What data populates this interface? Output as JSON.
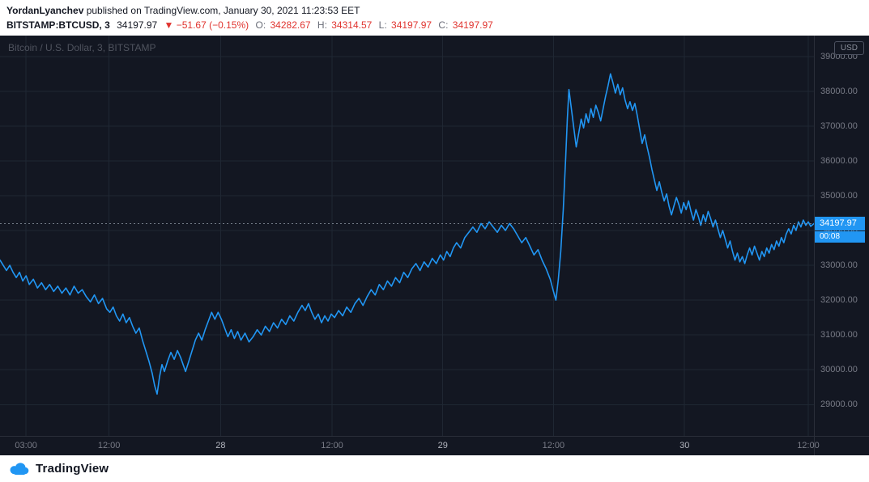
{
  "header": {
    "byline_author": "YordanLyanchev",
    "byline_rest": " published on TradingView.com, January 30, 2021 11:23:53 EET",
    "symbol": "BITSTAMP:BTCUSD, 3",
    "last_price": "34197.97",
    "change": "▼ −51.67 (−0.15%)",
    "ohlc": [
      {
        "label": "O:",
        "value": "34282.67"
      },
      {
        "label": "H:",
        "value": "34314.57"
      },
      {
        "label": "L:",
        "value": "34197.97"
      },
      {
        "label": "C:",
        "value": "34197.97"
      }
    ]
  },
  "footer": {
    "brand": "TradingView"
  },
  "colors": {
    "accent_blue": "#2196f3",
    "down_red": "#e0342f",
    "chart_bg": "#131722",
    "grid": "#1f2733",
    "axis_text": "#787b86"
  },
  "chart_data": {
    "type": "line",
    "title": "Bitcoin / U.S. Dollar, 3, BITSTAMP",
    "symbol": "BITSTAMP:BTCUSD",
    "interval": "3",
    "exchange": "BITSTAMP",
    "currency_tag": "USD",
    "last_price": 34197.97,
    "last_price_label": "34197.97",
    "countdown": "00:08",
    "ylim": [
      28100,
      39600
    ],
    "grid": true,
    "y_ticks": [
      {
        "value": 39000,
        "label": "39000.00"
      },
      {
        "value": 38000,
        "label": "38000.00"
      },
      {
        "value": 37000,
        "label": "37000.00"
      },
      {
        "value": 36000,
        "label": "36000.00"
      },
      {
        "value": 35000,
        "label": "35000.00"
      },
      {
        "value": 34000,
        "label": "34000.00"
      },
      {
        "value": 33000,
        "label": "33000.00"
      },
      {
        "value": 32000,
        "label": "32000.00"
      },
      {
        "value": 31000,
        "label": "31000.00"
      },
      {
        "value": 30000,
        "label": "30000.00"
      },
      {
        "value": 29000,
        "label": "29000.00"
      }
    ],
    "x_ticks": [
      {
        "f": 0.032,
        "label": "03:00",
        "major": false
      },
      {
        "f": 0.134,
        "label": "12:00",
        "major": false
      },
      {
        "f": 0.271,
        "label": "28",
        "major": true
      },
      {
        "f": 0.408,
        "label": "12:00",
        "major": false
      },
      {
        "f": 0.544,
        "label": "29",
        "major": true
      },
      {
        "f": 0.68,
        "label": "12:00",
        "major": false
      },
      {
        "f": 0.841,
        "label": "30",
        "major": true
      },
      {
        "f": 0.993,
        "label": "12:00",
        "major": false
      }
    ],
    "series": [
      {
        "name": "BTCUSD",
        "color": "#2196f3",
        "points": [
          [
            0.0,
            33150
          ],
          [
            0.004,
            33000
          ],
          [
            0.008,
            32850
          ],
          [
            0.012,
            33000
          ],
          [
            0.016,
            32800
          ],
          [
            0.02,
            32650
          ],
          [
            0.024,
            32800
          ],
          [
            0.028,
            32550
          ],
          [
            0.032,
            32700
          ],
          [
            0.036,
            32450
          ],
          [
            0.041,
            32600
          ],
          [
            0.046,
            32350
          ],
          [
            0.051,
            32500
          ],
          [
            0.056,
            32300
          ],
          [
            0.061,
            32450
          ],
          [
            0.066,
            32250
          ],
          [
            0.071,
            32400
          ],
          [
            0.076,
            32200
          ],
          [
            0.081,
            32350
          ],
          [
            0.086,
            32150
          ],
          [
            0.091,
            32400
          ],
          [
            0.096,
            32200
          ],
          [
            0.101,
            32300
          ],
          [
            0.106,
            32100
          ],
          [
            0.111,
            31950
          ],
          [
            0.116,
            32150
          ],
          [
            0.121,
            31900
          ],
          [
            0.126,
            32050
          ],
          [
            0.131,
            31750
          ],
          [
            0.135,
            31650
          ],
          [
            0.139,
            31800
          ],
          [
            0.143,
            31550
          ],
          [
            0.147,
            31400
          ],
          [
            0.151,
            31600
          ],
          [
            0.155,
            31350
          ],
          [
            0.159,
            31500
          ],
          [
            0.163,
            31250
          ],
          [
            0.167,
            31050
          ],
          [
            0.171,
            31200
          ],
          [
            0.175,
            30850
          ],
          [
            0.179,
            30550
          ],
          [
            0.183,
            30250
          ],
          [
            0.187,
            29900
          ],
          [
            0.19,
            29550
          ],
          [
            0.193,
            29300
          ],
          [
            0.196,
            29800
          ],
          [
            0.199,
            30150
          ],
          [
            0.202,
            29950
          ],
          [
            0.206,
            30250
          ],
          [
            0.21,
            30500
          ],
          [
            0.214,
            30300
          ],
          [
            0.218,
            30550
          ],
          [
            0.222,
            30350
          ],
          [
            0.225,
            30150
          ],
          [
            0.228,
            29950
          ],
          [
            0.232,
            30250
          ],
          [
            0.236,
            30550
          ],
          [
            0.24,
            30850
          ],
          [
            0.244,
            31050
          ],
          [
            0.248,
            30850
          ],
          [
            0.252,
            31150
          ],
          [
            0.256,
            31400
          ],
          [
            0.26,
            31650
          ],
          [
            0.264,
            31450
          ],
          [
            0.268,
            31650
          ],
          [
            0.272,
            31450
          ],
          [
            0.276,
            31200
          ],
          [
            0.28,
            30950
          ],
          [
            0.284,
            31150
          ],
          [
            0.288,
            30900
          ],
          [
            0.292,
            31100
          ],
          [
            0.296,
            30850
          ],
          [
            0.301,
            31050
          ],
          [
            0.306,
            30800
          ],
          [
            0.311,
            30950
          ],
          [
            0.316,
            31150
          ],
          [
            0.321,
            31000
          ],
          [
            0.326,
            31250
          ],
          [
            0.331,
            31100
          ],
          [
            0.336,
            31350
          ],
          [
            0.341,
            31200
          ],
          [
            0.346,
            31450
          ],
          [
            0.351,
            31300
          ],
          [
            0.356,
            31550
          ],
          [
            0.361,
            31400
          ],
          [
            0.366,
            31650
          ],
          [
            0.371,
            31850
          ],
          [
            0.375,
            31700
          ],
          [
            0.379,
            31900
          ],
          [
            0.383,
            31650
          ],
          [
            0.387,
            31450
          ],
          [
            0.391,
            31600
          ],
          [
            0.395,
            31350
          ],
          [
            0.399,
            31550
          ],
          [
            0.403,
            31400
          ],
          [
            0.407,
            31600
          ],
          [
            0.411,
            31500
          ],
          [
            0.416,
            31700
          ],
          [
            0.421,
            31550
          ],
          [
            0.426,
            31800
          ],
          [
            0.431,
            31650
          ],
          [
            0.436,
            31900
          ],
          [
            0.441,
            32050
          ],
          [
            0.446,
            31850
          ],
          [
            0.451,
            32100
          ],
          [
            0.456,
            32300
          ],
          [
            0.461,
            32150
          ],
          [
            0.466,
            32450
          ],
          [
            0.471,
            32300
          ],
          [
            0.476,
            32550
          ],
          [
            0.481,
            32400
          ],
          [
            0.486,
            32650
          ],
          [
            0.491,
            32500
          ],
          [
            0.496,
            32800
          ],
          [
            0.501,
            32650
          ],
          [
            0.506,
            32900
          ],
          [
            0.511,
            33050
          ],
          [
            0.516,
            32850
          ],
          [
            0.521,
            33100
          ],
          [
            0.526,
            32950
          ],
          [
            0.531,
            33200
          ],
          [
            0.536,
            33050
          ],
          [
            0.541,
            33300
          ],
          [
            0.545,
            33150
          ],
          [
            0.549,
            33400
          ],
          [
            0.553,
            33250
          ],
          [
            0.557,
            33500
          ],
          [
            0.561,
            33650
          ],
          [
            0.566,
            33500
          ],
          [
            0.571,
            33800
          ],
          [
            0.576,
            33950
          ],
          [
            0.581,
            34100
          ],
          [
            0.586,
            33950
          ],
          [
            0.591,
            34200
          ],
          [
            0.596,
            34050
          ],
          [
            0.601,
            34250
          ],
          [
            0.606,
            34100
          ],
          [
            0.611,
            33950
          ],
          [
            0.616,
            34150
          ],
          [
            0.621,
            34000
          ],
          [
            0.626,
            34200
          ],
          [
            0.631,
            34050
          ],
          [
            0.636,
            33850
          ],
          [
            0.641,
            33650
          ],
          [
            0.646,
            33800
          ],
          [
            0.651,
            33550
          ],
          [
            0.656,
            33300
          ],
          [
            0.661,
            33450
          ],
          [
            0.666,
            33150
          ],
          [
            0.671,
            32900
          ],
          [
            0.676,
            32600
          ],
          [
            0.68,
            32250
          ],
          [
            0.683,
            32000
          ],
          [
            0.686,
            32600
          ],
          [
            0.689,
            33400
          ],
          [
            0.692,
            34600
          ],
          [
            0.695,
            36100
          ],
          [
            0.697,
            37200
          ],
          [
            0.699,
            38050
          ],
          [
            0.702,
            37500
          ],
          [
            0.705,
            36950
          ],
          [
            0.708,
            36400
          ],
          [
            0.711,
            36800
          ],
          [
            0.714,
            37200
          ],
          [
            0.717,
            36950
          ],
          [
            0.72,
            37350
          ],
          [
            0.723,
            37100
          ],
          [
            0.726,
            37500
          ],
          [
            0.729,
            37250
          ],
          [
            0.732,
            37600
          ],
          [
            0.735,
            37400
          ],
          [
            0.738,
            37150
          ],
          [
            0.741,
            37500
          ],
          [
            0.744,
            37850
          ],
          [
            0.747,
            38150
          ],
          [
            0.75,
            38500
          ],
          [
            0.753,
            38250
          ],
          [
            0.756,
            37950
          ],
          [
            0.759,
            38200
          ],
          [
            0.762,
            37900
          ],
          [
            0.765,
            38100
          ],
          [
            0.768,
            37750
          ],
          [
            0.771,
            37500
          ],
          [
            0.774,
            37700
          ],
          [
            0.777,
            37450
          ],
          [
            0.78,
            37650
          ],
          [
            0.783,
            37300
          ],
          [
            0.786,
            36900
          ],
          [
            0.789,
            36500
          ],
          [
            0.792,
            36750
          ],
          [
            0.795,
            36400
          ],
          [
            0.798,
            36100
          ],
          [
            0.801,
            35750
          ],
          [
            0.804,
            35450
          ],
          [
            0.807,
            35150
          ],
          [
            0.81,
            35400
          ],
          [
            0.813,
            35100
          ],
          [
            0.816,
            34850
          ],
          [
            0.819,
            35050
          ],
          [
            0.822,
            34700
          ],
          [
            0.825,
            34450
          ],
          [
            0.828,
            34700
          ],
          [
            0.831,
            34950
          ],
          [
            0.834,
            34750
          ],
          [
            0.837,
            34500
          ],
          [
            0.84,
            34800
          ],
          [
            0.843,
            34600
          ],
          [
            0.846,
            34850
          ],
          [
            0.849,
            34550
          ],
          [
            0.852,
            34300
          ],
          [
            0.855,
            34600
          ],
          [
            0.858,
            34400
          ],
          [
            0.861,
            34150
          ],
          [
            0.864,
            34450
          ],
          [
            0.867,
            34250
          ],
          [
            0.87,
            34550
          ],
          [
            0.873,
            34350
          ],
          [
            0.876,
            34100
          ],
          [
            0.879,
            34300
          ],
          [
            0.882,
            34050
          ],
          [
            0.885,
            33800
          ],
          [
            0.888,
            34000
          ],
          [
            0.891,
            33750
          ],
          [
            0.894,
            33500
          ],
          [
            0.897,
            33700
          ],
          [
            0.9,
            33400
          ],
          [
            0.903,
            33150
          ],
          [
            0.906,
            33350
          ],
          [
            0.909,
            33100
          ],
          [
            0.912,
            33250
          ],
          [
            0.915,
            33050
          ],
          [
            0.918,
            33300
          ],
          [
            0.921,
            33500
          ],
          [
            0.924,
            33300
          ],
          [
            0.927,
            33550
          ],
          [
            0.93,
            33350
          ],
          [
            0.933,
            33150
          ],
          [
            0.936,
            33400
          ],
          [
            0.939,
            33250
          ],
          [
            0.942,
            33500
          ],
          [
            0.945,
            33350
          ],
          [
            0.948,
            33600
          ],
          [
            0.951,
            33450
          ],
          [
            0.954,
            33700
          ],
          [
            0.957,
            33550
          ],
          [
            0.96,
            33800
          ],
          [
            0.963,
            33650
          ],
          [
            0.966,
            33900
          ],
          [
            0.969,
            34050
          ],
          [
            0.972,
            33900
          ],
          [
            0.975,
            34150
          ],
          [
            0.978,
            34000
          ],
          [
            0.981,
            34250
          ],
          [
            0.984,
            34100
          ],
          [
            0.987,
            34300
          ],
          [
            0.99,
            34150
          ],
          [
            0.993,
            34250
          ],
          [
            0.996,
            34120
          ],
          [
            1.0,
            34197.97
          ]
        ]
      }
    ]
  }
}
